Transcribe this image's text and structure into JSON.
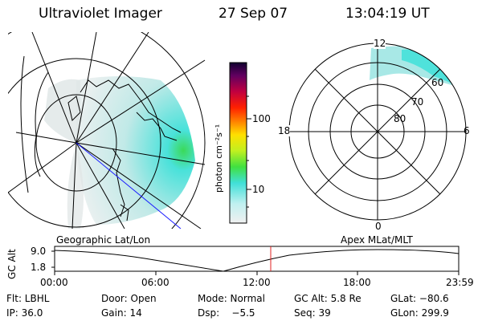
{
  "header": {
    "instrument": "Ultraviolet Imager",
    "date": "27 Sep 07",
    "time": "13:04:19 UT"
  },
  "colorbar": {
    "label": "photon cm⁻²s⁻¹",
    "ticks": [
      "100",
      "10"
    ]
  },
  "polar_plot": {
    "mlt_labels": {
      "top": "12",
      "left": "18",
      "right": "6",
      "bottom": "0"
    },
    "lat_labels": [
      "60",
      "70",
      "80"
    ]
  },
  "timeline": {
    "left_title": "Geographic Lat/Lon",
    "right_title": "Apex MLat/MLT",
    "axis_label": "GC Alt",
    "y_ticks": [
      "9.0",
      "1.8"
    ],
    "x_ticks": [
      "00:00",
      "06:00",
      "12:00",
      "18:00",
      "23:59"
    ]
  },
  "info": {
    "row1": [
      "Flt: LBHL",
      "Door: Open",
      "Mode: Normal",
      "GC Alt: 5.8 Re",
      "GLat: −80.6"
    ],
    "row2": [
      "IP: 36.0",
      "Gain: 14",
      "Dsp:    −5.5",
      "Seq: 39",
      "GLon: 299.9"
    ]
  },
  "colors": {
    "marker": "#e02020",
    "track": "#1a1aff",
    "aurora_cyan": "#40e0d8",
    "aurora_green": "#40d040"
  }
}
